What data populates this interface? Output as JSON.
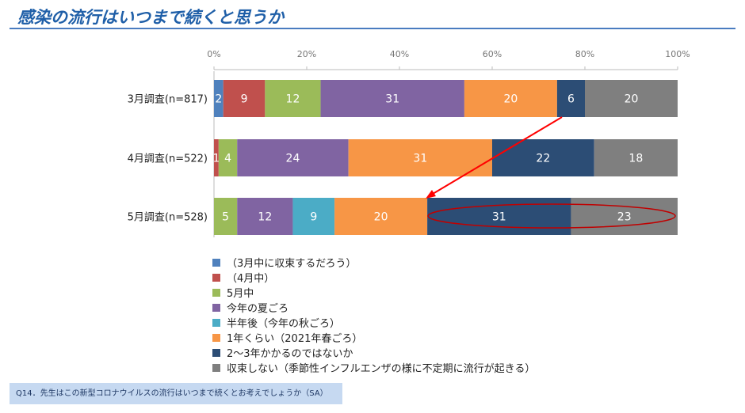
{
  "title": "感染の流行はいつまで続くと思うか",
  "question": "Q14．先生はこの新型コロナウイルスの流行はいつまで続くとお考えでしょうか（SA）",
  "chart_data": {
    "type": "bar",
    "orientation": "horizontal",
    "stacked": "percent",
    "xlim": [
      0,
      100
    ],
    "ticks": [
      "0%",
      "20%",
      "40%",
      "60%",
      "80%",
      "100%"
    ],
    "categories": [
      "3月調査(n=817)",
      "4月調査(n=522)",
      "5月調査(n=528)"
    ],
    "series": [
      {
        "name": "（3月中に収束するだろう）",
        "color": "#4f81bd",
        "values": [
          2,
          0,
          0
        ]
      },
      {
        "name": "（4月中）",
        "color": "#c0504d",
        "values": [
          9,
          1,
          0
        ]
      },
      {
        "name": "5月中",
        "color": "#9bbb59",
        "values": [
          12,
          4,
          5
        ]
      },
      {
        "name": "今年の夏ごろ",
        "color": "#8064a2",
        "values": [
          31,
          24,
          12
        ]
      },
      {
        "name": "半年後（今年の秋ごろ）",
        "color": "#4bacc6",
        "values": [
          0,
          0,
          9
        ]
      },
      {
        "name": "1年くらい（2021年春ごろ）",
        "color": "#f79646",
        "values": [
          20,
          31,
          20
        ]
      },
      {
        "name": "2～3年かかるのではないか",
        "color": "#2c4d75",
        "values": [
          6,
          22,
          31
        ]
      },
      {
        "name": "収束しない（季節性インフルエンザの様に不定期に流行が起きる）",
        "color": "#7f7f7f",
        "values": [
          20,
          18,
          23
        ]
      }
    ],
    "annotations": [
      "arrow from 3月 end of 1年くらい to 5月 start of 2～3年",
      "ellipse around 5月 2～3年 and 収束しない"
    ]
  }
}
